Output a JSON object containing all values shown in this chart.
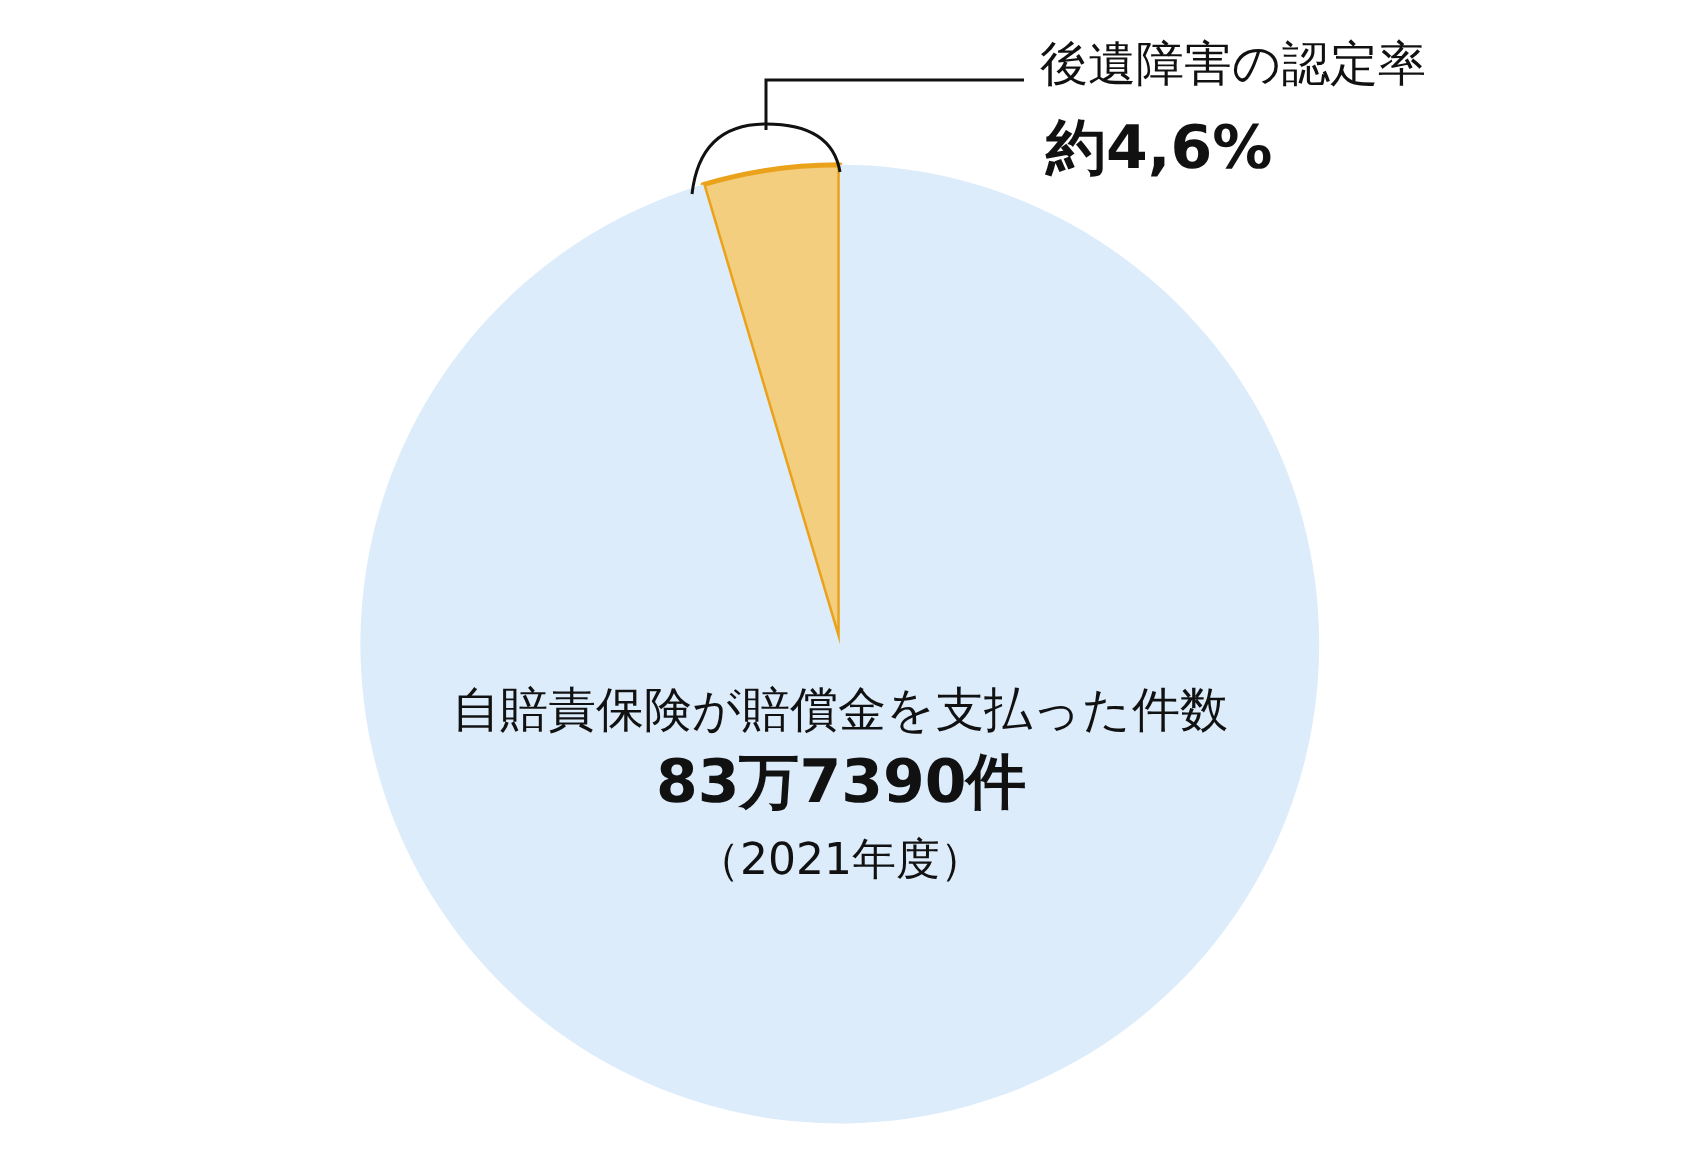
{
  "chart_data": {
    "type": "pie",
    "categories": [
      "後遺障害の認定率",
      "自賠責保険が賠償金を支払った件数"
    ],
    "values": [
      4.6,
      95.4
    ],
    "colors": [
      "#f2ce7e",
      "#dcecfb"
    ],
    "value_labels": [
      "約4,6%",
      null
    ],
    "annotations": [
      "83万7390件",
      "（2021年度）"
    ],
    "legend": false
  }
}
